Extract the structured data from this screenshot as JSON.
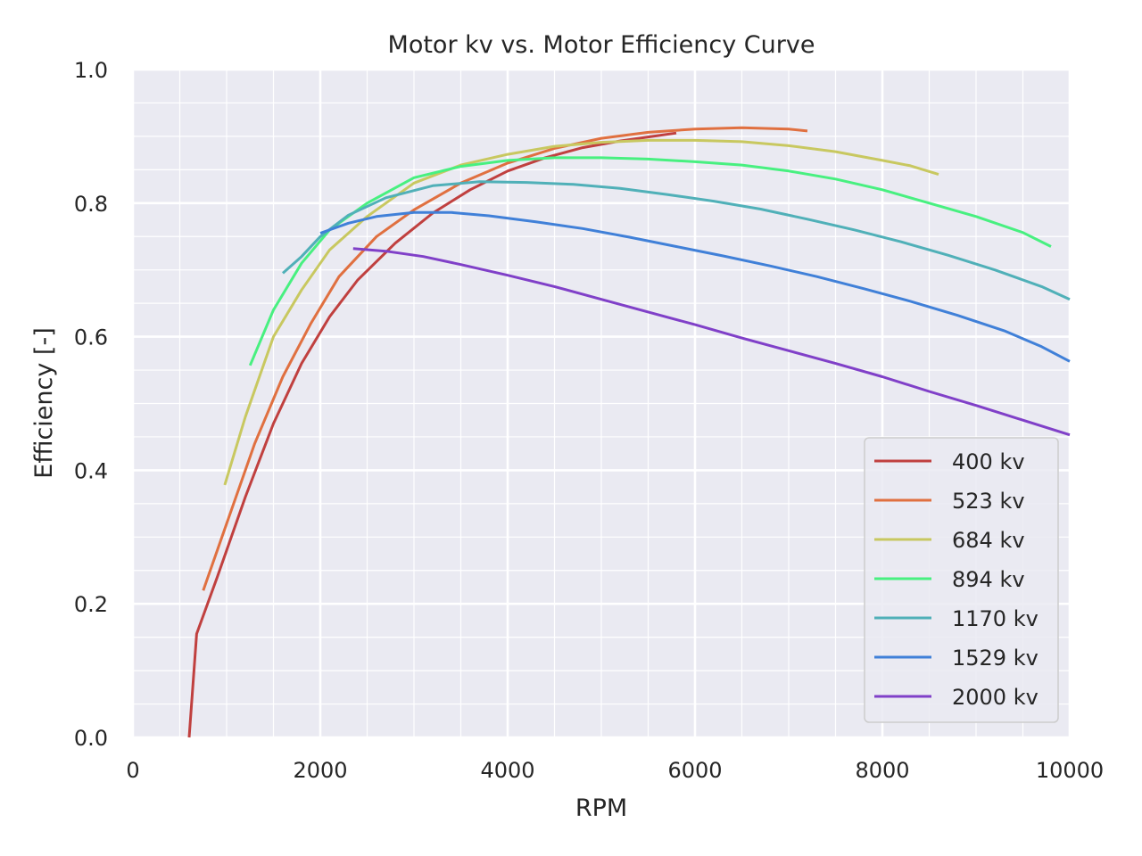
{
  "chart_data": {
    "type": "line",
    "title": "Motor kv vs. Motor Efficiency Curve",
    "xlabel": "RPM",
    "ylabel": "Efficiency [-]",
    "xlim": [
      0,
      10000
    ],
    "ylim": [
      0,
      1.0
    ],
    "xticks": [
      0,
      2000,
      4000,
      6000,
      8000,
      10000
    ],
    "yticks": [
      0.0,
      0.2,
      0.4,
      0.6,
      0.8,
      1.0
    ],
    "xtick_labels": [
      "0",
      "2000",
      "4000",
      "6000",
      "8000",
      "10000"
    ],
    "ytick_labels": [
      "0.0",
      "0.2",
      "0.4",
      "0.6",
      "0.8",
      "1.0"
    ],
    "x_minor_step": 500,
    "y_minor_step": 0.05,
    "grid": true,
    "legend_position": "lower-right",
    "series": [
      {
        "name": "400 kv",
        "color": "#c0403f",
        "points": [
          [
            600,
            0.0
          ],
          [
            680,
            0.155
          ],
          [
            900,
            0.24
          ],
          [
            1200,
            0.36
          ],
          [
            1500,
            0.47
          ],
          [
            1800,
            0.56
          ],
          [
            2100,
            0.63
          ],
          [
            2400,
            0.685
          ],
          [
            2800,
            0.74
          ],
          [
            3200,
            0.785
          ],
          [
            3600,
            0.82
          ],
          [
            4000,
            0.848
          ],
          [
            4400,
            0.868
          ],
          [
            4800,
            0.883
          ],
          [
            5200,
            0.893
          ],
          [
            5500,
            0.899
          ],
          [
            5800,
            0.905
          ]
        ]
      },
      {
        "name": "523 kv",
        "color": "#e07040",
        "points": [
          [
            750,
            0.22
          ],
          [
            1000,
            0.32
          ],
          [
            1300,
            0.44
          ],
          [
            1600,
            0.54
          ],
          [
            1900,
            0.62
          ],
          [
            2200,
            0.69
          ],
          [
            2600,
            0.75
          ],
          [
            3000,
            0.79
          ],
          [
            3500,
            0.83
          ],
          [
            4000,
            0.86
          ],
          [
            4500,
            0.882
          ],
          [
            5000,
            0.897
          ],
          [
            5500,
            0.906
          ],
          [
            6000,
            0.911
          ],
          [
            6500,
            0.913
          ],
          [
            7000,
            0.911
          ],
          [
            7200,
            0.908
          ]
        ]
      },
      {
        "name": "684 kv",
        "color": "#c8c860",
        "points": [
          [
            980,
            0.378
          ],
          [
            1200,
            0.48
          ],
          [
            1500,
            0.6
          ],
          [
            1800,
            0.67
          ],
          [
            2100,
            0.73
          ],
          [
            2500,
            0.78
          ],
          [
            3000,
            0.83
          ],
          [
            3500,
            0.857
          ],
          [
            4000,
            0.873
          ],
          [
            4500,
            0.885
          ],
          [
            5000,
            0.891
          ],
          [
            5500,
            0.894
          ],
          [
            6000,
            0.894
          ],
          [
            6500,
            0.892
          ],
          [
            7000,
            0.886
          ],
          [
            7500,
            0.877
          ],
          [
            8000,
            0.864
          ],
          [
            8300,
            0.856
          ],
          [
            8600,
            0.843
          ]
        ]
      },
      {
        "name": "894 kv",
        "color": "#48f080",
        "points": [
          [
            1250,
            0.557
          ],
          [
            1500,
            0.64
          ],
          [
            1800,
            0.71
          ],
          [
            2100,
            0.76
          ],
          [
            2500,
            0.8
          ],
          [
            3000,
            0.838
          ],
          [
            3500,
            0.855
          ],
          [
            4000,
            0.864
          ],
          [
            4500,
            0.868
          ],
          [
            5000,
            0.868
          ],
          [
            5500,
            0.866
          ],
          [
            6000,
            0.862
          ],
          [
            6500,
            0.857
          ],
          [
            7000,
            0.848
          ],
          [
            7500,
            0.836
          ],
          [
            8000,
            0.82
          ],
          [
            8500,
            0.8
          ],
          [
            9000,
            0.78
          ],
          [
            9500,
            0.756
          ],
          [
            9800,
            0.735
          ]
        ]
      },
      {
        "name": "1170 kv",
        "color": "#50b0b8",
        "points": [
          [
            1600,
            0.695
          ],
          [
            1800,
            0.72
          ],
          [
            2000,
            0.75
          ],
          [
            2300,
            0.782
          ],
          [
            2700,
            0.808
          ],
          [
            3200,
            0.826
          ],
          [
            3700,
            0.832
          ],
          [
            4200,
            0.831
          ],
          [
            4700,
            0.828
          ],
          [
            5200,
            0.822
          ],
          [
            5700,
            0.813
          ],
          [
            6200,
            0.803
          ],
          [
            6700,
            0.791
          ],
          [
            7200,
            0.776
          ],
          [
            7700,
            0.76
          ],
          [
            8200,
            0.742
          ],
          [
            8700,
            0.722
          ],
          [
            9200,
            0.7
          ],
          [
            9700,
            0.675
          ],
          [
            10000,
            0.656
          ]
        ]
      },
      {
        "name": "1529 kv",
        "color": "#4080d8",
        "points": [
          [
            2000,
            0.755
          ],
          [
            2300,
            0.77
          ],
          [
            2600,
            0.78
          ],
          [
            3000,
            0.786
          ],
          [
            3400,
            0.786
          ],
          [
            3800,
            0.781
          ],
          [
            4300,
            0.772
          ],
          [
            4800,
            0.762
          ],
          [
            5300,
            0.749
          ],
          [
            5800,
            0.735
          ],
          [
            6300,
            0.721
          ],
          [
            6800,
            0.706
          ],
          [
            7300,
            0.69
          ],
          [
            7800,
            0.672
          ],
          [
            8300,
            0.653
          ],
          [
            8800,
            0.632
          ],
          [
            9300,
            0.609
          ],
          [
            9700,
            0.585
          ],
          [
            10000,
            0.563
          ]
        ]
      },
      {
        "name": "2000 kv",
        "color": "#8040c8",
        "points": [
          [
            2350,
            0.732
          ],
          [
            2700,
            0.728
          ],
          [
            3100,
            0.72
          ],
          [
            3500,
            0.708
          ],
          [
            4000,
            0.692
          ],
          [
            4500,
            0.675
          ],
          [
            5000,
            0.656
          ],
          [
            5500,
            0.637
          ],
          [
            6000,
            0.618
          ],
          [
            6500,
            0.598
          ],
          [
            7000,
            0.579
          ],
          [
            7500,
            0.56
          ],
          [
            8000,
            0.54
          ],
          [
            8500,
            0.518
          ],
          [
            9000,
            0.497
          ],
          [
            9500,
            0.475
          ],
          [
            10000,
            0.453
          ]
        ]
      }
    ]
  }
}
